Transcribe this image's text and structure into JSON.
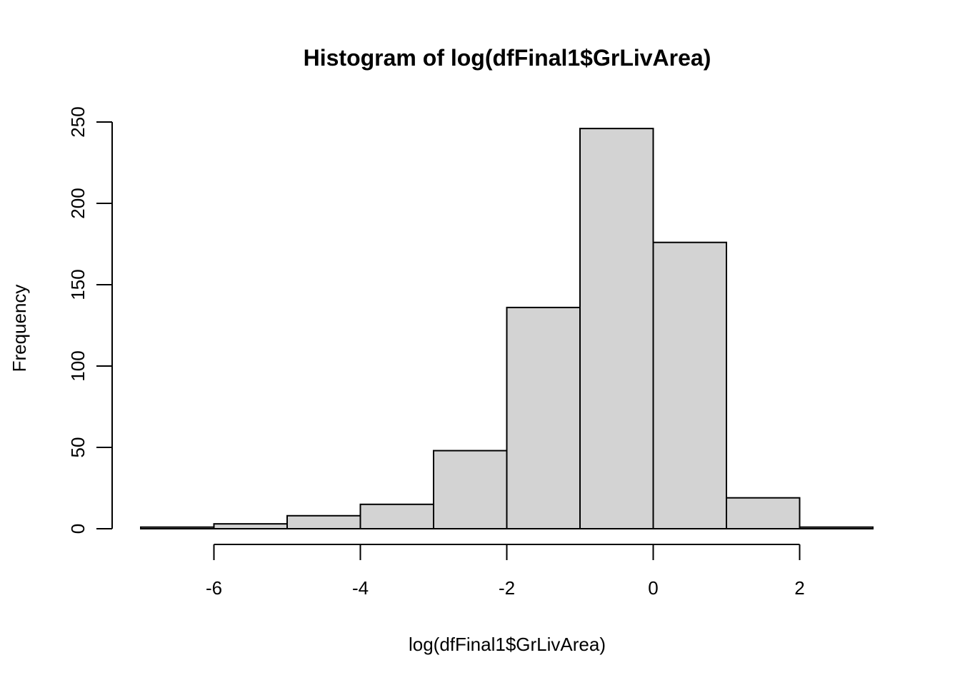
{
  "chart_data": {
    "type": "bar",
    "title": "Histogram of log(dfFinal1$GrLivArea)",
    "xlabel": "log(dfFinal1$GrLivArea)",
    "ylabel": "Frequency",
    "bins": [
      {
        "x0": -7,
        "x1": -6,
        "count": 1
      },
      {
        "x0": -6,
        "x1": -5,
        "count": 3
      },
      {
        "x0": -5,
        "x1": -4,
        "count": 8
      },
      {
        "x0": -4,
        "x1": -3,
        "count": 15
      },
      {
        "x0": -3,
        "x1": -2,
        "count": 48
      },
      {
        "x0": -2,
        "x1": -1,
        "count": 136
      },
      {
        "x0": -1,
        "x1": 0,
        "count": 246
      },
      {
        "x0": 0,
        "x1": 1,
        "count": 176
      },
      {
        "x0": 1,
        "x1": 2,
        "count": 19
      },
      {
        "x0": 2,
        "x1": 3,
        "count": 1
      }
    ],
    "xlim": [
      -7,
      3
    ],
    "ylim": [
      0,
      250
    ],
    "xticks": [
      -6,
      -4,
      -2,
      0,
      2
    ],
    "xtick_labels": [
      "-6",
      "-4",
      "-2",
      "0",
      "2"
    ],
    "yticks": [
      0,
      50,
      100,
      150,
      200,
      250
    ],
    "ytick_labels": [
      "0",
      "50",
      "100",
      "150",
      "200",
      "250"
    ],
    "grid": false,
    "bar_color": "#d3d3d3",
    "border_color": "#000000"
  }
}
